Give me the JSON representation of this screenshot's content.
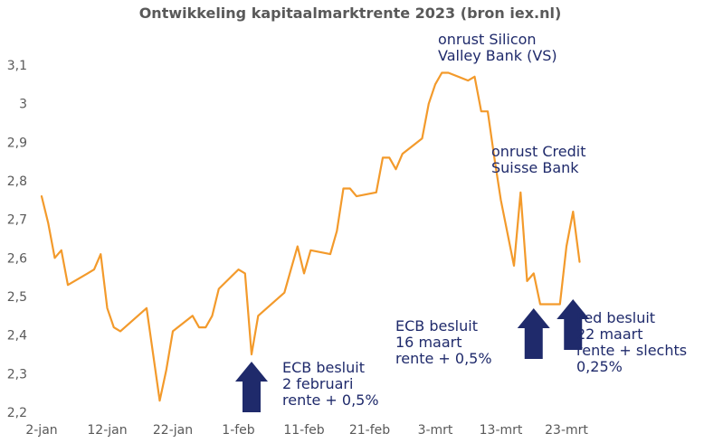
{
  "chart_data": {
    "type": "line",
    "title": "Ontwikkeling kapitaalmarktrente 2023 (bron iex.nl)",
    "xlabel": "",
    "ylabel": "",
    "ylim": [
      2.2,
      3.1
    ],
    "y_ticks": [
      "2,2",
      "2,3",
      "2,4",
      "2,5",
      "2,6",
      "2,7",
      "2,8",
      "2,9",
      "3",
      "3,1"
    ],
    "y_tick_values": [
      2.2,
      2.3,
      2.4,
      2.5,
      2.6,
      2.7,
      2.8,
      2.9,
      3.0,
      3.1
    ],
    "x_ticks": [
      "2-jan",
      "12-jan",
      "22-jan",
      "1-feb",
      "11-feb",
      "21-feb",
      "3-mrt",
      "13-mrt",
      "23-mrt"
    ],
    "x_tick_dates": [
      "2023-01-02",
      "2023-01-12",
      "2023-01-22",
      "2023-02-01",
      "2023-02-11",
      "2023-02-21",
      "2023-03-03",
      "2023-03-13",
      "2023-03-23"
    ],
    "grid": false,
    "legend": "none",
    "line_color": "#f39a2b",
    "annotation_color": "#1f2a6b",
    "series": [
      {
        "values": [
          {
            "x": "2023-01-02",
            "y": 2.76
          },
          {
            "x": "2023-01-03",
            "y": 2.69
          },
          {
            "x": "2023-01-04",
            "y": 2.6
          },
          {
            "x": "2023-01-05",
            "y": 2.62
          },
          {
            "x": "2023-01-06",
            "y": 2.53
          },
          {
            "x": "2023-01-09",
            "y": 2.56
          },
          {
            "x": "2023-01-10",
            "y": 2.57
          },
          {
            "x": "2023-01-11",
            "y": 2.61
          },
          {
            "x": "2023-01-12",
            "y": 2.47
          },
          {
            "x": "2023-01-13",
            "y": 2.42
          },
          {
            "x": "2023-01-14",
            "y": 2.41
          },
          {
            "x": "2023-01-18",
            "y": 2.47
          },
          {
            "x": "2023-01-20",
            "y": 2.23
          },
          {
            "x": "2023-01-21",
            "y": 2.31
          },
          {
            "x": "2023-01-22",
            "y": 2.41
          },
          {
            "x": "2023-01-25",
            "y": 2.45
          },
          {
            "x": "2023-01-26",
            "y": 2.42
          },
          {
            "x": "2023-01-27",
            "y": 2.42
          },
          {
            "x": "2023-01-28",
            "y": 2.45
          },
          {
            "x": "2023-01-29",
            "y": 2.52
          },
          {
            "x": "2023-02-01",
            "y": 2.57
          },
          {
            "x": "2023-02-02",
            "y": 2.56
          },
          {
            "x": "2023-02-03",
            "y": 2.35
          },
          {
            "x": "2023-02-04",
            "y": 2.45
          },
          {
            "x": "2023-02-08",
            "y": 2.51
          },
          {
            "x": "2023-02-09",
            "y": 2.57
          },
          {
            "x": "2023-02-10",
            "y": 2.63
          },
          {
            "x": "2023-02-11",
            "y": 2.56
          },
          {
            "x": "2023-02-12",
            "y": 2.62
          },
          {
            "x": "2023-02-15",
            "y": 2.61
          },
          {
            "x": "2023-02-16",
            "y": 2.67
          },
          {
            "x": "2023-02-17",
            "y": 2.78
          },
          {
            "x": "2023-02-18",
            "y": 2.78
          },
          {
            "x": "2023-02-19",
            "y": 2.76
          },
          {
            "x": "2023-02-22",
            "y": 2.77
          },
          {
            "x": "2023-02-23",
            "y": 2.86
          },
          {
            "x": "2023-02-24",
            "y": 2.86
          },
          {
            "x": "2023-02-25",
            "y": 2.83
          },
          {
            "x": "2023-02-26",
            "y": 2.87
          },
          {
            "x": "2023-03-01",
            "y": 2.91
          },
          {
            "x": "2023-03-02",
            "y": 3.0
          },
          {
            "x": "2023-03-03",
            "y": 3.05
          },
          {
            "x": "2023-03-04",
            "y": 3.08
          },
          {
            "x": "2023-03-05",
            "y": 3.08
          },
          {
            "x": "2023-03-08",
            "y": 3.06
          },
          {
            "x": "2023-03-09",
            "y": 3.07
          },
          {
            "x": "2023-03-10",
            "y": 2.98
          },
          {
            "x": "2023-03-11",
            "y": 2.98
          },
          {
            "x": "2023-03-12",
            "y": 2.86
          },
          {
            "x": "2023-03-13",
            "y": 2.75
          },
          {
            "x": "2023-03-15",
            "y": 2.58
          },
          {
            "x": "2023-03-16",
            "y": 2.77
          },
          {
            "x": "2023-03-17",
            "y": 2.54
          },
          {
            "x": "2023-03-18",
            "y": 2.56
          },
          {
            "x": "2023-03-19",
            "y": 2.48
          },
          {
            "x": "2023-03-22",
            "y": 2.48
          },
          {
            "x": "2023-03-23",
            "y": 2.63
          },
          {
            "x": "2023-03-24",
            "y": 2.72
          },
          {
            "x": "2023-03-25",
            "y": 2.59
          }
        ]
      }
    ],
    "annotations": [
      {
        "id": "svb",
        "lines": [
          "onrust Silicon",
          "Valley Bank (VS)"
        ]
      },
      {
        "id": "credit-suisse",
        "lines": [
          "onrust Credit",
          "Suisse Bank"
        ]
      },
      {
        "id": "ecb-feb",
        "lines": [
          "ECB besluit",
          "2 februari",
          "rente + 0,5%"
        ]
      },
      {
        "id": "ecb-mrt",
        "lines": [
          "ECB besluit",
          "16 maart",
          "rente + 0,5%"
        ]
      },
      {
        "id": "fed-mrt",
        "lines": [
          "Fed besluit",
          "22 maart",
          "rente + slechts",
          "0,25%"
        ]
      }
    ],
    "event_arrows": [
      {
        "id": "ecb-feb-arrow",
        "x": "2023-02-03"
      },
      {
        "id": "ecb-mrt-arrow",
        "x": "2023-03-18"
      },
      {
        "id": "fed-mrt-arrow",
        "x": "2023-03-24"
      }
    ]
  }
}
